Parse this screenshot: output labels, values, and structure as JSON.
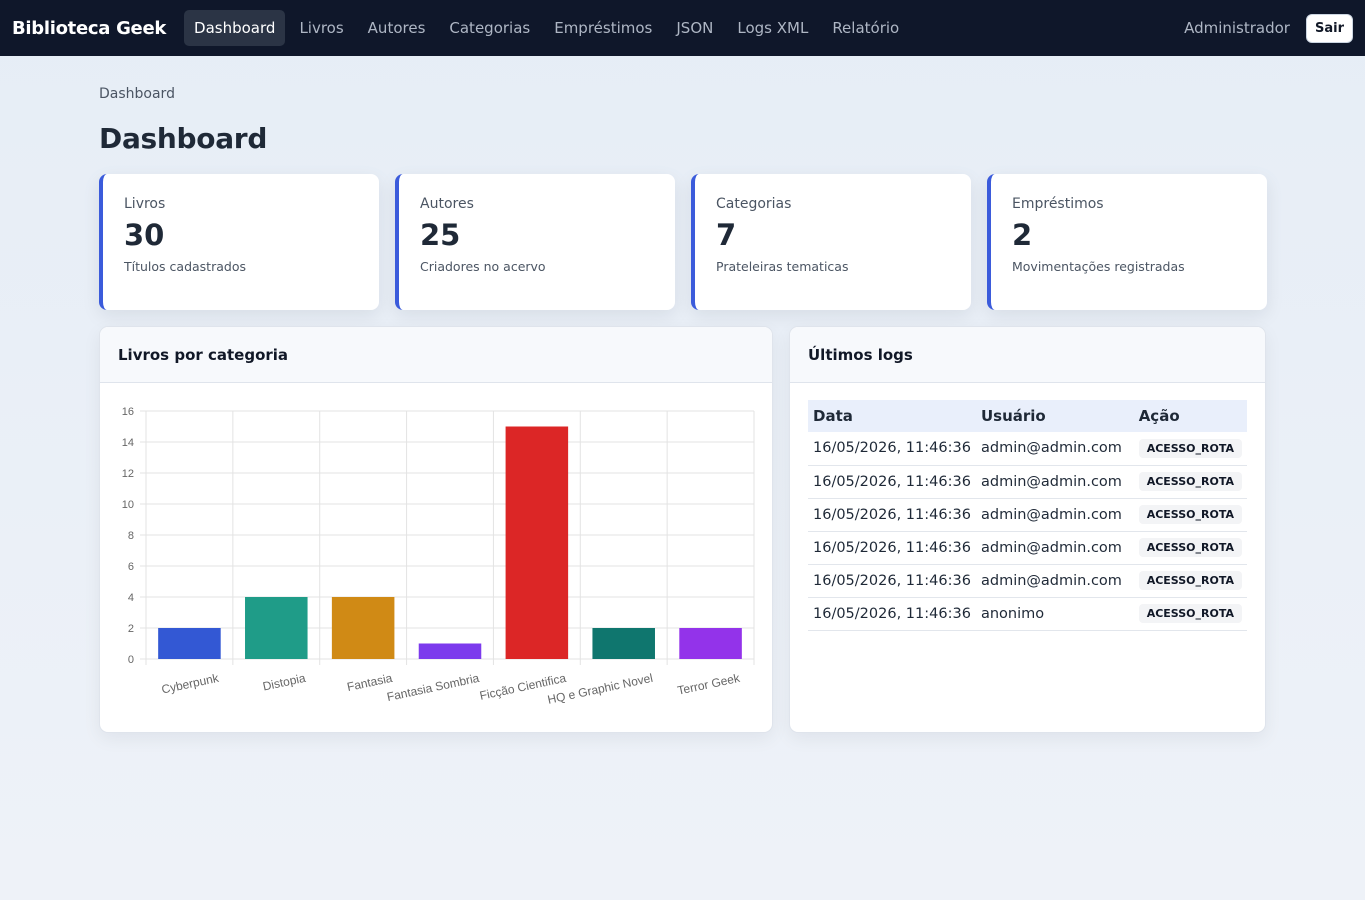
{
  "navbar": {
    "brand": "Biblioteca Geek",
    "links": [
      "Dashboard",
      "Livros",
      "Autores",
      "Categorias",
      "Empréstimos",
      "JSON",
      "Logs XML",
      "Relatório"
    ],
    "active_index": 0,
    "user": "Administrador",
    "logout_label": "Sair"
  },
  "breadcrumb": "Dashboard",
  "page_title": "Dashboard",
  "stats": [
    {
      "label": "Livros",
      "value": "30",
      "sub": "Títulos cadastrados"
    },
    {
      "label": "Autores",
      "value": "25",
      "sub": "Criadores no acervo"
    },
    {
      "label": "Categorias",
      "value": "7",
      "sub": "Prateleiras tematicas"
    },
    {
      "label": "Empréstimos",
      "value": "2",
      "sub": "Movimentações registradas"
    }
  ],
  "chart_panel": {
    "title": "Livros por categoria"
  },
  "chart_data": {
    "type": "bar",
    "categories": [
      "Cyberpunk",
      "Distopia",
      "Fantasia",
      "Fantasia Sombria",
      "Ficção Cientifica",
      "HQ e Graphic Novel",
      "Terror Geek"
    ],
    "values": [
      2,
      4,
      4,
      1,
      15,
      2,
      2
    ],
    "colors": [
      "#3358d4",
      "#1f9c88",
      "#d08a15",
      "#7c3aed",
      "#dc2626",
      "#0f766e",
      "#9333ea"
    ],
    "ylim": [
      0,
      16
    ],
    "yticks": [
      0,
      2,
      4,
      6,
      8,
      10,
      12,
      14,
      16
    ],
    "grid": true,
    "legend": "none"
  },
  "logs_panel": {
    "title": "Últimos logs",
    "columns": [
      "Data",
      "Usuário",
      "Ação"
    ],
    "rows": [
      {
        "date": "16/05/2026, 11:46:36",
        "user": "admin@admin.com",
        "action": "ACESSO_ROTA"
      },
      {
        "date": "16/05/2026, 11:46:36",
        "user": "admin@admin.com",
        "action": "ACESSO_ROTA"
      },
      {
        "date": "16/05/2026, 11:46:36",
        "user": "admin@admin.com",
        "action": "ACESSO_ROTA"
      },
      {
        "date": "16/05/2026, 11:46:36",
        "user": "admin@admin.com",
        "action": "ACESSO_ROTA"
      },
      {
        "date": "16/05/2026, 11:46:36",
        "user": "admin@admin.com",
        "action": "ACESSO_ROTA"
      },
      {
        "date": "16/05/2026, 11:46:36",
        "user": "anonimo",
        "action": "ACESSO_ROTA"
      }
    ]
  }
}
